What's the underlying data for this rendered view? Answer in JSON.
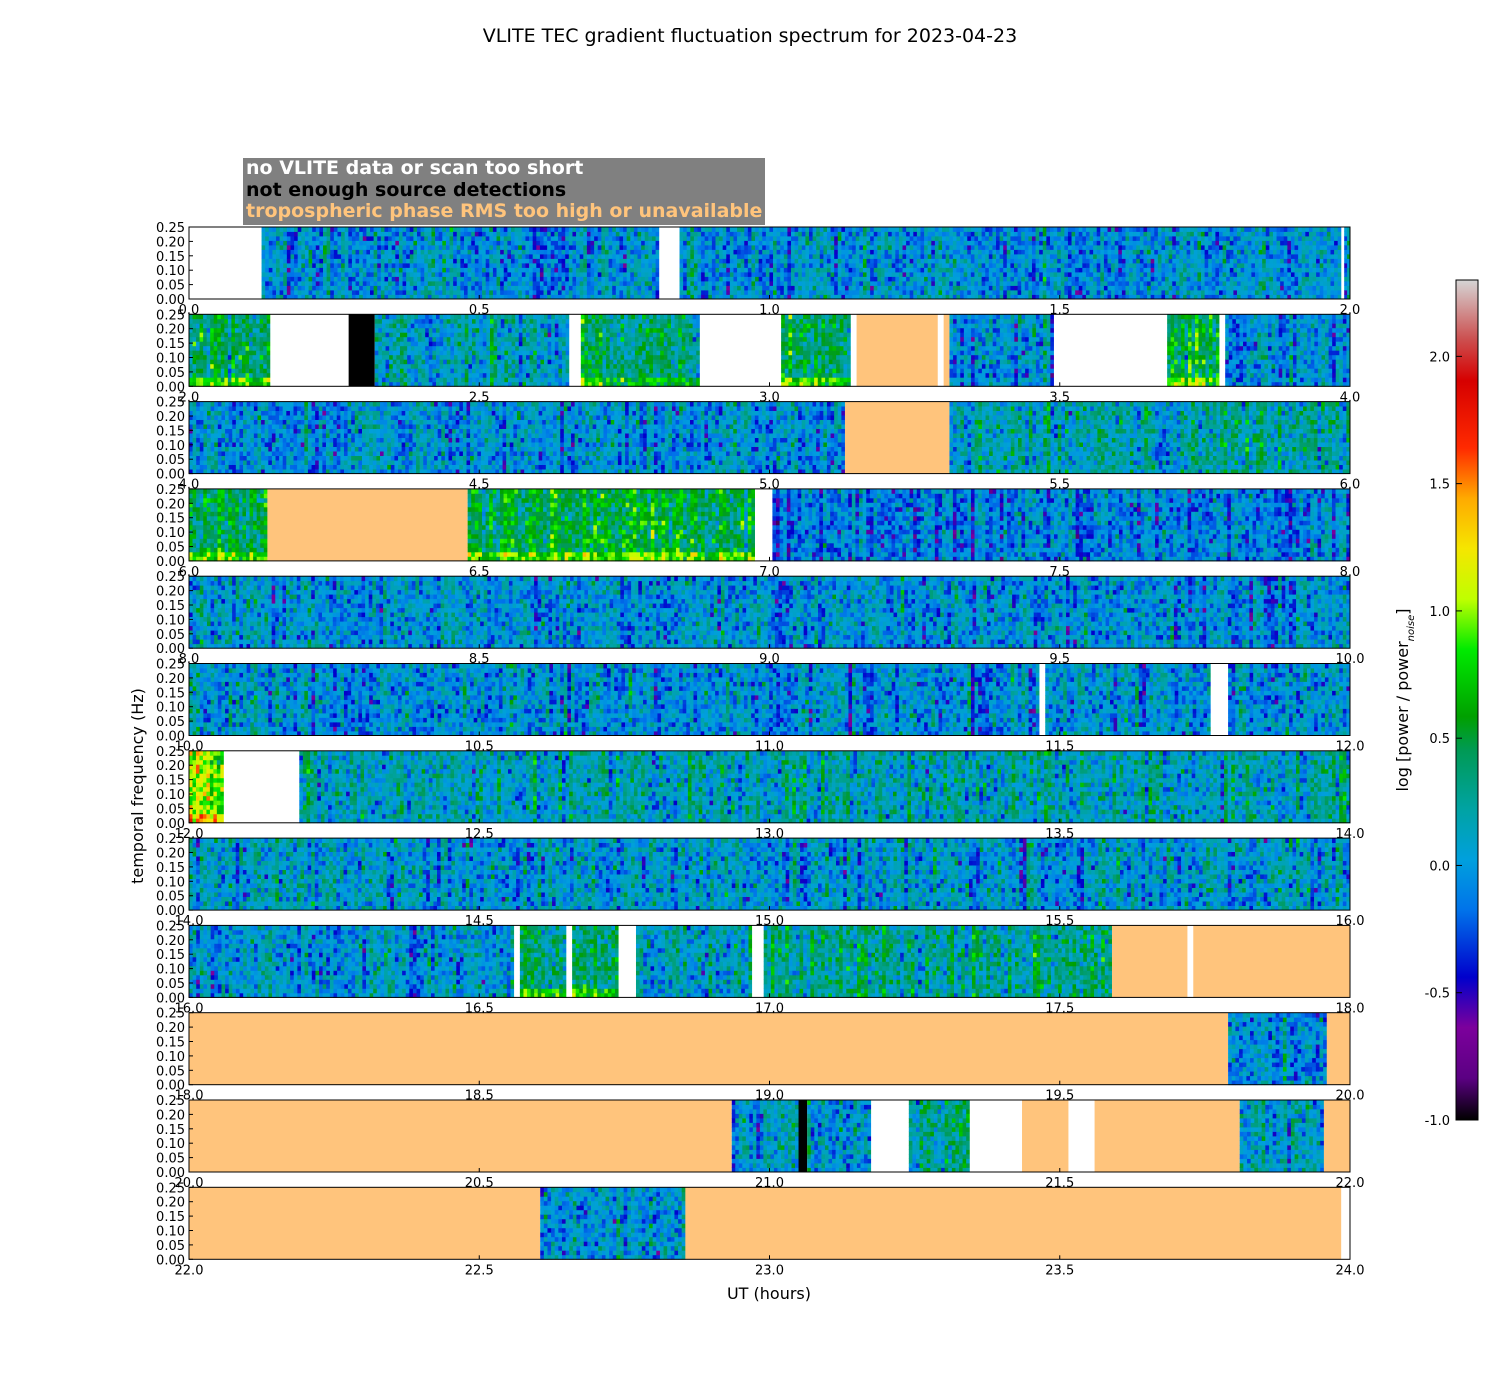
{
  "chart_data": {
    "type": "heatmap",
    "title": "VLITE TEC gradient fluctuation spectrum for 2023-04-23",
    "xlabel": "UT (hours)",
    "ylabel": "temporal frequency (Hz)",
    "colorbar_label": "log [power / power_noise]",
    "colorbar_ticks": [
      -1.0,
      -0.5,
      0.0,
      0.5,
      1.0,
      1.5,
      2.0
    ],
    "colorbar_range": [
      -1.0,
      2.3
    ],
    "ylim": [
      0.0,
      0.25
    ],
    "y_ticks": [
      "0.00",
      "0.05",
      "0.10",
      "0.15",
      "0.20",
      "0.25"
    ],
    "legend": [
      {
        "label": "no VLITE data or scan too short",
        "color": "#ffffff"
      },
      {
        "label": "not enough source detections",
        "color": "#000000"
      },
      {
        "label": "tropospheric phase RMS too high or unavailable",
        "color": "#ffc47c"
      }
    ],
    "panels": [
      {
        "range": [
          0,
          2
        ],
        "ticks": [
          "0.0",
          "0.5",
          "1.0",
          "1.5",
          "2.0"
        ],
        "segments": [
          {
            "from": 0.0,
            "to": 0.125,
            "kind": "nodata"
          },
          {
            "from": 0.125,
            "to": 0.81,
            "kind": "data",
            "level": 0.0
          },
          {
            "from": 0.81,
            "to": 0.845,
            "kind": "nodata"
          },
          {
            "from": 0.845,
            "to": 1.985,
            "kind": "data",
            "level": 0.0
          },
          {
            "from": 1.985,
            "to": 1.99,
            "kind": "nodata"
          },
          {
            "from": 1.99,
            "to": 2.0,
            "kind": "data",
            "level": 0.0
          }
        ]
      },
      {
        "range": [
          2,
          4
        ],
        "ticks": [
          "2.0",
          "2.5",
          "3.0",
          "3.5",
          "4.0"
        ],
        "segments": [
          {
            "from": 2.0,
            "to": 2.14,
            "kind": "data",
            "level": 0.4
          },
          {
            "from": 2.14,
            "to": 2.275,
            "kind": "nodata"
          },
          {
            "from": 2.275,
            "to": 2.32,
            "kind": "nodet"
          },
          {
            "from": 2.32,
            "to": 2.655,
            "kind": "data",
            "level": 0.1
          },
          {
            "from": 2.655,
            "to": 2.675,
            "kind": "nodata"
          },
          {
            "from": 2.675,
            "to": 2.88,
            "kind": "data",
            "level": 0.35
          },
          {
            "from": 2.88,
            "to": 3.02,
            "kind": "nodata"
          },
          {
            "from": 3.02,
            "to": 3.14,
            "kind": "data",
            "level": 0.45
          },
          {
            "from": 3.14,
            "to": 3.15,
            "kind": "nodata"
          },
          {
            "from": 3.15,
            "to": 3.29,
            "kind": "tropo"
          },
          {
            "from": 3.29,
            "to": 3.3,
            "kind": "nodata"
          },
          {
            "from": 3.3,
            "to": 3.31,
            "kind": "tropo"
          },
          {
            "from": 3.31,
            "to": 3.49,
            "kind": "data",
            "level": 0.0
          },
          {
            "from": 3.49,
            "to": 3.685,
            "kind": "nodata"
          },
          {
            "from": 3.685,
            "to": 3.775,
            "kind": "data",
            "level": 0.5
          },
          {
            "from": 3.775,
            "to": 3.785,
            "kind": "nodata"
          },
          {
            "from": 3.785,
            "to": 4.0,
            "kind": "data",
            "level": 0.0
          }
        ]
      },
      {
        "range": [
          4,
          6
        ],
        "ticks": [
          "4.0",
          "4.5",
          "5.0",
          "5.5",
          "6.0"
        ],
        "segments": [
          {
            "from": 4.0,
            "to": 5.13,
            "kind": "data",
            "level": 0.0
          },
          {
            "from": 5.13,
            "to": 5.31,
            "kind": "tropo"
          },
          {
            "from": 5.31,
            "to": 6.0,
            "kind": "data",
            "level": 0.2
          }
        ]
      },
      {
        "range": [
          6,
          8
        ],
        "ticks": [
          "6.0",
          "6.5",
          "7.0",
          "7.5",
          "8.0"
        ],
        "segments": [
          {
            "from": 6.0,
            "to": 6.135,
            "kind": "data",
            "level": 0.45
          },
          {
            "from": 6.135,
            "to": 6.48,
            "kind": "tropo"
          },
          {
            "from": 6.48,
            "to": 6.975,
            "kind": "data",
            "level": 0.5
          },
          {
            "from": 6.975,
            "to": 7.005,
            "kind": "nodata"
          },
          {
            "from": 7.005,
            "to": 8.0,
            "kind": "data",
            "level": -0.1
          }
        ]
      },
      {
        "range": [
          8,
          10
        ],
        "ticks": [
          "8.0",
          "8.5",
          "9.0",
          "9.5",
          "10.0"
        ],
        "segments": [
          {
            "from": 8.0,
            "to": 10.0,
            "kind": "data",
            "level": 0.0
          }
        ]
      },
      {
        "range": [
          10,
          12
        ],
        "ticks": [
          "10.0",
          "10.5",
          "11.0",
          "11.5",
          "12.0"
        ],
        "segments": [
          {
            "from": 10.0,
            "to": 11.465,
            "kind": "data",
            "level": 0.0
          },
          {
            "from": 11.465,
            "to": 11.475,
            "kind": "nodata"
          },
          {
            "from": 11.475,
            "to": 11.76,
            "kind": "data",
            "level": 0.0
          },
          {
            "from": 11.76,
            "to": 11.79,
            "kind": "nodata"
          },
          {
            "from": 11.79,
            "to": 12.0,
            "kind": "data",
            "level": 0.0
          }
        ]
      },
      {
        "range": [
          12,
          14
        ],
        "ticks": [
          "12.0",
          "12.5",
          "13.0",
          "13.5",
          "14.0"
        ],
        "segments": [
          {
            "from": 12.0,
            "to": 12.06,
            "kind": "data",
            "level": 1.0
          },
          {
            "from": 12.06,
            "to": 12.19,
            "kind": "nodata"
          },
          {
            "from": 12.19,
            "to": 14.0,
            "kind": "data",
            "level": 0.15
          }
        ]
      },
      {
        "range": [
          14,
          16
        ],
        "ticks": [
          "14.0",
          "14.5",
          "15.0",
          "15.5",
          "16.0"
        ],
        "segments": [
          {
            "from": 14.0,
            "to": 16.0,
            "kind": "data",
            "level": 0.05
          }
        ]
      },
      {
        "range": [
          16,
          18
        ],
        "ticks": [
          "16.0",
          "16.5",
          "17.0",
          "17.5",
          "18.0"
        ],
        "segments": [
          {
            "from": 16.0,
            "to": 16.56,
            "kind": "data",
            "level": 0.05
          },
          {
            "from": 16.56,
            "to": 16.57,
            "kind": "nodata"
          },
          {
            "from": 16.57,
            "to": 16.65,
            "kind": "data",
            "level": 0.4
          },
          {
            "from": 16.65,
            "to": 16.66,
            "kind": "nodata"
          },
          {
            "from": 16.66,
            "to": 16.74,
            "kind": "data",
            "level": 0.4
          },
          {
            "from": 16.74,
            "to": 16.77,
            "kind": "nodata"
          },
          {
            "from": 16.77,
            "to": 16.97,
            "kind": "data",
            "level": 0.1
          },
          {
            "from": 16.97,
            "to": 16.99,
            "kind": "nodata"
          },
          {
            "from": 16.99,
            "to": 17.59,
            "kind": "data",
            "level": 0.25
          },
          {
            "from": 17.59,
            "to": 17.72,
            "kind": "tropo"
          },
          {
            "from": 17.72,
            "to": 17.73,
            "kind": "nodata"
          },
          {
            "from": 17.73,
            "to": 18.0,
            "kind": "tropo"
          }
        ]
      },
      {
        "range": [
          18,
          20
        ],
        "ticks": [
          "18.0",
          "18.5",
          "19.0",
          "19.5",
          "20.0"
        ],
        "segments": [
          {
            "from": 18.0,
            "to": 19.79,
            "kind": "tropo"
          },
          {
            "from": 19.79,
            "to": 19.96,
            "kind": "data",
            "level": 0.0
          },
          {
            "from": 19.96,
            "to": 20.0,
            "kind": "tropo"
          }
        ]
      },
      {
        "range": [
          20,
          22
        ],
        "ticks": [
          "20.0",
          "20.5",
          "21.0",
          "21.5",
          "22.0"
        ],
        "segments": [
          {
            "from": 20.0,
            "to": 20.935,
            "kind": "tropo"
          },
          {
            "from": 20.935,
            "to": 21.05,
            "kind": "data",
            "level": 0.0
          },
          {
            "from": 21.05,
            "to": 21.065,
            "kind": "nodet"
          },
          {
            "from": 21.065,
            "to": 21.175,
            "kind": "data",
            "level": 0.0
          },
          {
            "from": 21.175,
            "to": 21.24,
            "kind": "nodata"
          },
          {
            "from": 21.24,
            "to": 21.345,
            "kind": "data",
            "level": 0.25
          },
          {
            "from": 21.345,
            "to": 21.435,
            "kind": "nodata"
          },
          {
            "from": 21.435,
            "to": 21.515,
            "kind": "tropo"
          },
          {
            "from": 21.515,
            "to": 21.56,
            "kind": "nodata"
          },
          {
            "from": 21.56,
            "to": 21.81,
            "kind": "tropo"
          },
          {
            "from": 21.81,
            "to": 21.955,
            "kind": "data",
            "level": 0.1
          },
          {
            "from": 21.955,
            "to": 22.0,
            "kind": "tropo"
          }
        ]
      },
      {
        "range": [
          22,
          24
        ],
        "ticks": [
          "22.0",
          "22.5",
          "23.0",
          "23.5",
          "24.0"
        ],
        "segments": [
          {
            "from": 22.0,
            "to": 22.605,
            "kind": "tropo"
          },
          {
            "from": 22.605,
            "to": 22.855,
            "kind": "data",
            "level": 0.05
          },
          {
            "from": 22.855,
            "to": 23.985,
            "kind": "tropo"
          },
          {
            "from": 23.985,
            "to": 24.0,
            "kind": "nodata"
          }
        ]
      }
    ]
  }
}
